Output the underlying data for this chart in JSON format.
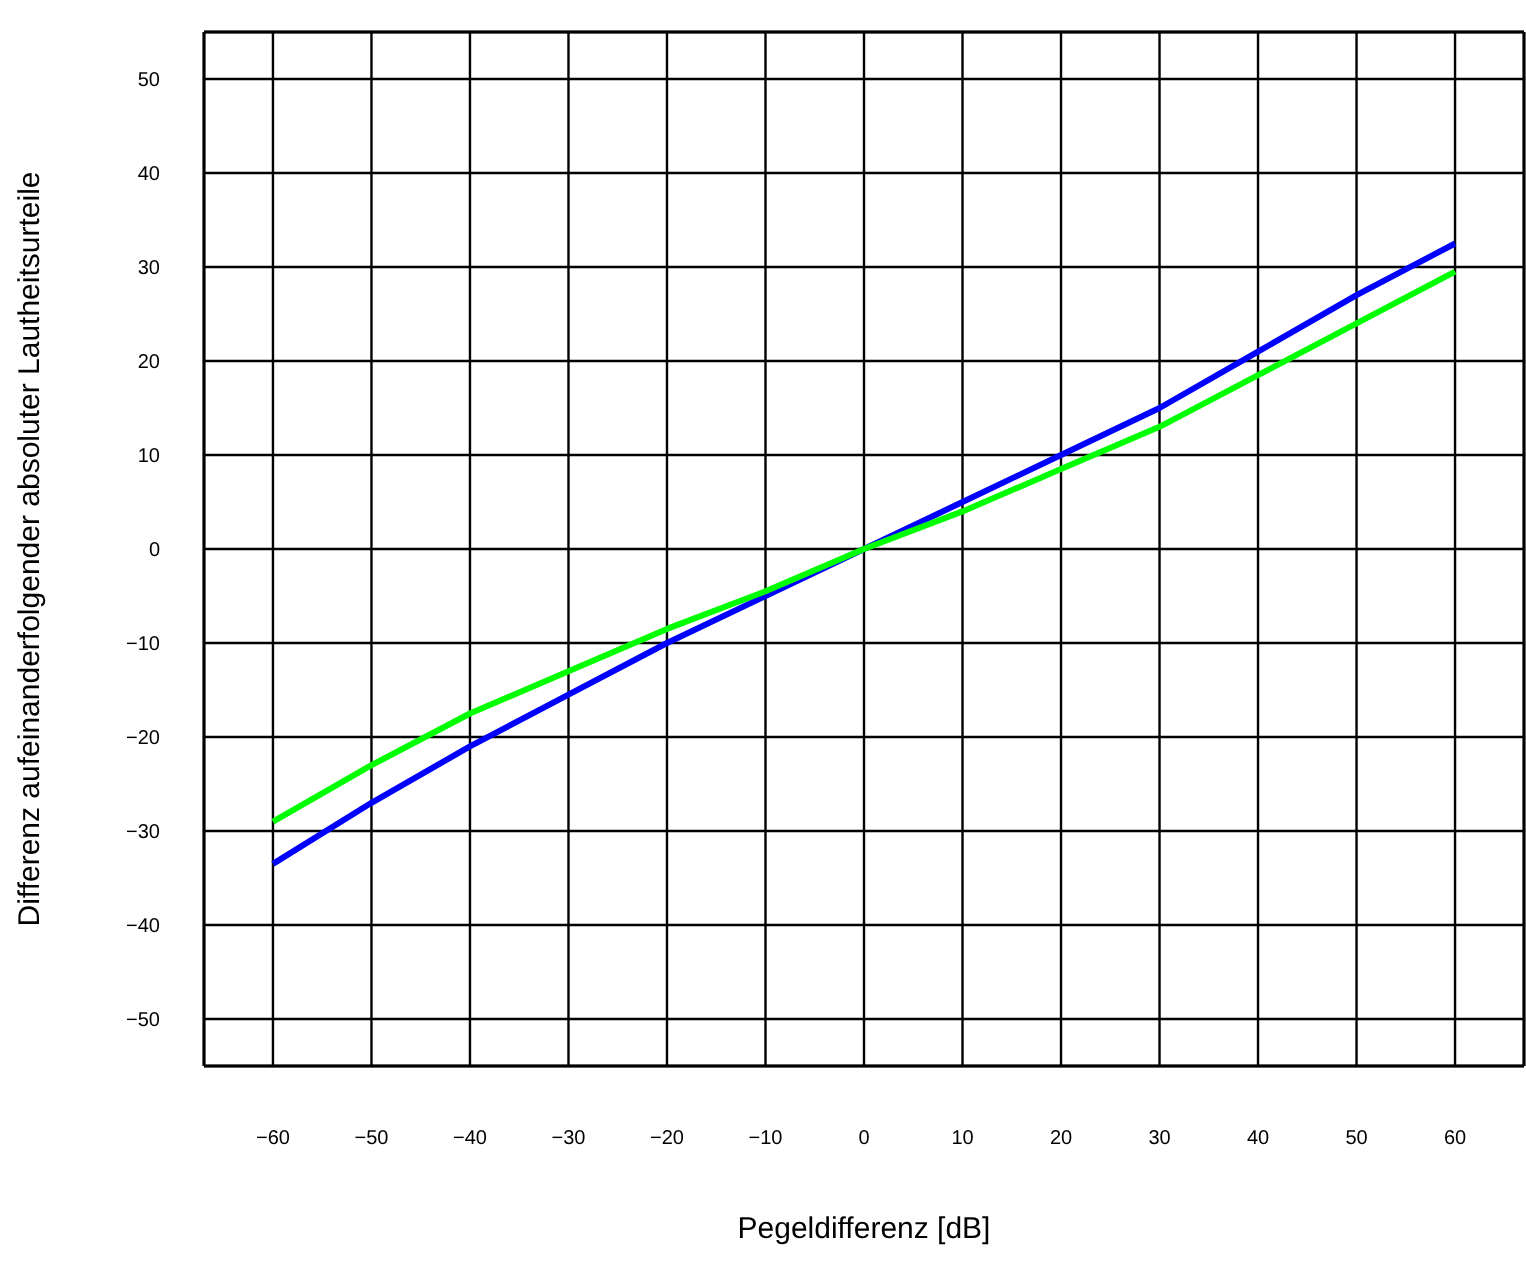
{
  "chart_data": {
    "type": "line",
    "xlabel": "Pegeldifferenz [dB]",
    "ylabel": "Differenz aufeinanderfolgender absoluter Lautheitsurteile",
    "x": [
      -60,
      -50,
      -40,
      -30,
      -20,
      -10,
      0,
      10,
      20,
      30,
      40,
      50,
      60
    ],
    "series": [
      {
        "color": "#0000ff",
        "values": [
          -33.5,
          -27,
          -21,
          -15.5,
          -10,
          -5,
          0,
          5,
          10,
          15,
          21,
          27,
          32.5
        ]
      },
      {
        "color": "#00ff00",
        "values": [
          -29,
          -23,
          -17.5,
          -13,
          -8.5,
          -4.5,
          0,
          4,
          8.5,
          13,
          18.5,
          24,
          29.5
        ]
      }
    ],
    "xlim": [
      -67,
      67
    ],
    "xticks": [
      -60,
      -50,
      -40,
      -30,
      -20,
      -10,
      0,
      10,
      20,
      30,
      40,
      50,
      60
    ],
    "ylim": [
      -55,
      55
    ],
    "yticks": [
      -50,
      -40,
      -30,
      -20,
      -10,
      0,
      10,
      20,
      30,
      40,
      50
    ],
    "grid": true,
    "legend": false,
    "marker": "none",
    "line_style": "solid"
  }
}
